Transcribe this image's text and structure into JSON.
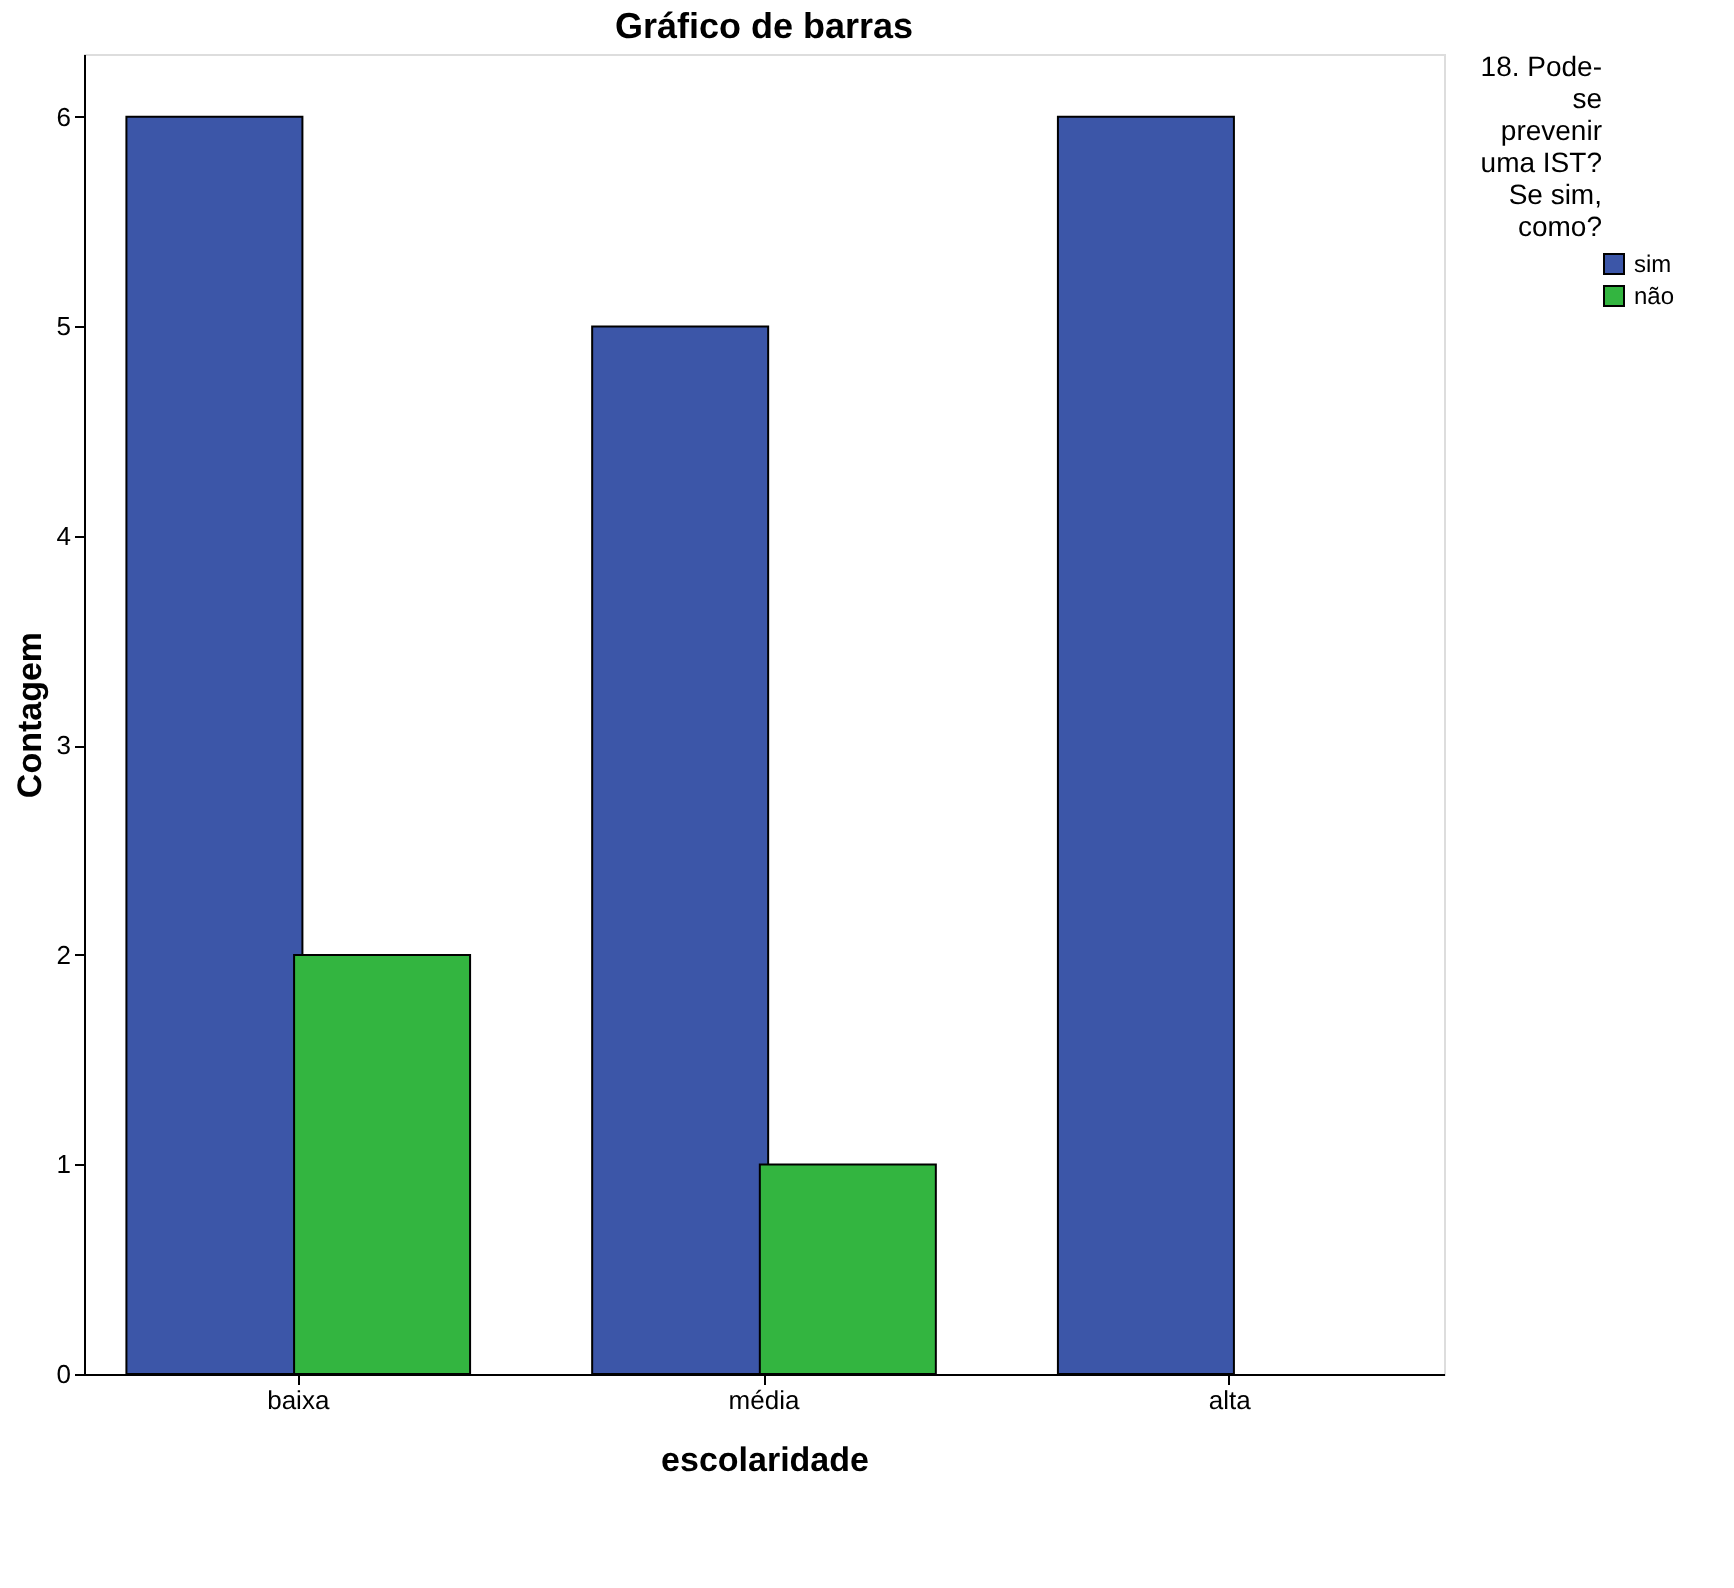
{
  "chart_data": {
    "type": "bar",
    "title": "Gráfico de barras",
    "xlabel": "escolaridade",
    "ylabel": "Contagem",
    "legend_title": "18. Pode-se prevenir uma IST? Se sim, como?",
    "categories": [
      "baixa",
      "média",
      "alta"
    ],
    "series": [
      {
        "name": "sim",
        "color": "#3c56a8",
        "values": [
          6,
          5,
          6
        ]
      },
      {
        "name": "não",
        "color": "#33b540",
        "values": [
          2,
          1,
          null
        ]
      }
    ],
    "ylim": [
      0,
      6.3
    ],
    "yticks": [
      0,
      1,
      2,
      3,
      4,
      5,
      6
    ],
    "grid": false,
    "legend": "top right"
  }
}
